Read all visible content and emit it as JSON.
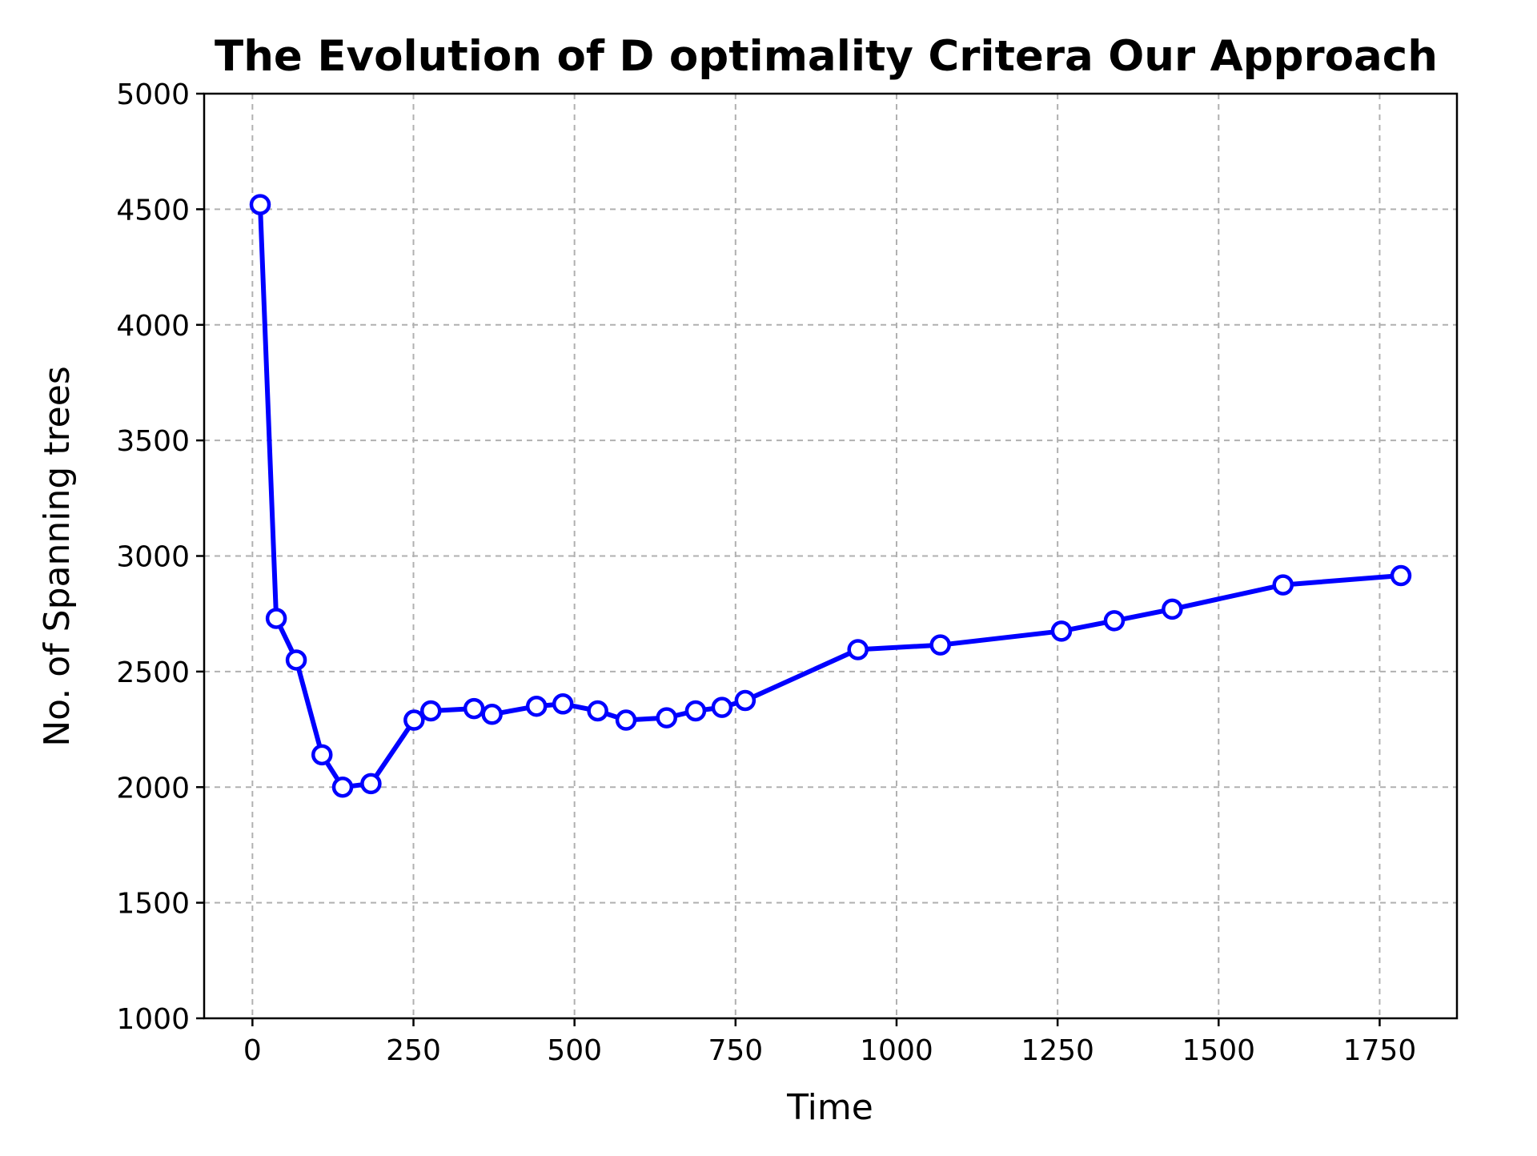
{
  "chart_data": {
    "type": "line",
    "title": "The Evolution of D optimality Critera Our Approach",
    "xlabel": "Time",
    "ylabel": "No. of Spanning trees",
    "xlim": [
      -75,
      1870
    ],
    "ylim": [
      1000,
      5000
    ],
    "xticks": [
      0,
      250,
      500,
      750,
      1000,
      1250,
      1500,
      1750
    ],
    "xtick_labels": [
      "0",
      "250",
      "500",
      "750",
      "1000",
      "1250",
      "1500",
      "1750"
    ],
    "yticks": [
      1000,
      1500,
      2000,
      2500,
      3000,
      3500,
      4000,
      4500,
      5000
    ],
    "ytick_labels": [
      "1000",
      "1500",
      "2000",
      "2500",
      "3000",
      "3500",
      "4000",
      "4500",
      "5000"
    ],
    "grid": true,
    "series": [
      {
        "color": "#0000ff",
        "marker": "circle-open",
        "x": [
          12,
          37,
          68,
          108,
          140,
          184,
          251,
          277,
          344,
          372,
          441,
          482,
          536,
          580,
          643,
          688,
          729,
          765,
          940,
          1068,
          1256,
          1338,
          1428,
          1600,
          1783
        ],
        "y": [
          4520,
          2730,
          2550,
          2140,
          2000,
          2015,
          2290,
          2330,
          2340,
          2315,
          2350,
          2360,
          2330,
          2290,
          2300,
          2330,
          2345,
          2375,
          2595,
          2615,
          2675,
          2720,
          2770,
          2875,
          2915
        ]
      }
    ]
  }
}
